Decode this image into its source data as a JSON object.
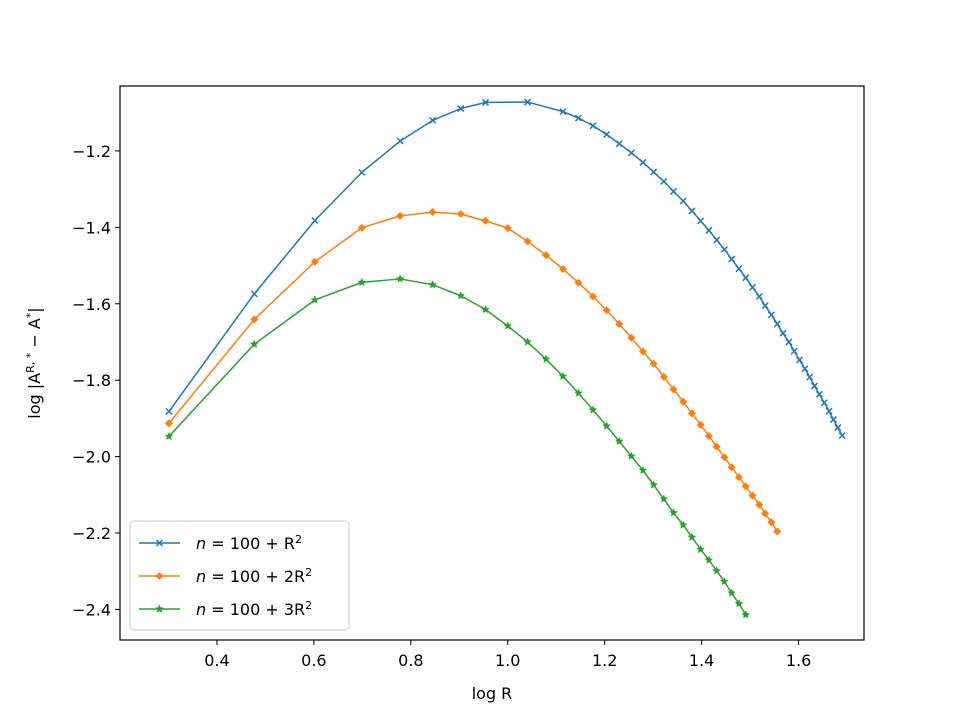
{
  "chart_data": {
    "type": "line",
    "title": "",
    "xlabel": "log R",
    "ylabel": "log |A^{R,*} − A^{*}|",
    "ylabel_parts": {
      "prefix": "log |A",
      "sup1": "R, *",
      "mid": " − A",
      "sup2": "*",
      "suffix": "|"
    },
    "xlim": [
      0.2,
      1.735
    ],
    "ylim": [
      -2.48,
      -1.03
    ],
    "xticks": [
      0.4,
      0.6,
      0.8,
      1.0,
      1.2,
      1.4,
      1.6
    ],
    "xtick_labels": [
      "0.4",
      "0.6",
      "0.8",
      "1.0",
      "1.2",
      "1.4",
      "1.6"
    ],
    "yticks": [
      -2.4,
      -2.2,
      -2.0,
      -1.8,
      -1.6,
      -1.4,
      -1.2
    ],
    "ytick_labels": [
      "−2.4",
      "−2.2",
      "−2.0",
      "−1.8",
      "−1.6",
      "−1.4",
      "−1.2"
    ],
    "grid": false,
    "legend_position": "lower-left",
    "series": [
      {
        "name": "n = 100 + R²",
        "legend": {
          "prefix": "n",
          "body": " = 100 + R",
          "sup": "2"
        },
        "color": "#1f77b4",
        "marker": "x",
        "x": [
          0.301,
          0.477,
          0.602,
          0.699,
          0.778,
          0.845,
          0.903,
          0.954,
          1.041,
          1.114,
          1.146,
          1.176,
          1.204,
          1.23,
          1.255,
          1.279,
          1.301,
          1.322,
          1.342,
          1.362,
          1.38,
          1.398,
          1.415,
          1.431,
          1.447,
          1.462,
          1.477,
          1.491,
          1.505,
          1.519,
          1.531,
          1.544,
          1.556,
          1.568,
          1.58,
          1.591,
          1.602,
          1.613,
          1.623,
          1.633,
          1.643,
          1.653,
          1.663,
          1.672,
          1.681,
          1.69
        ],
        "y": [
          -1.882,
          -1.574,
          -1.382,
          -1.256,
          -1.174,
          -1.12,
          -1.089,
          -1.073,
          -1.072,
          -1.097,
          -1.114,
          -1.134,
          -1.157,
          -1.181,
          -1.205,
          -1.23,
          -1.255,
          -1.28,
          -1.306,
          -1.331,
          -1.357,
          -1.383,
          -1.408,
          -1.433,
          -1.458,
          -1.483,
          -1.508,
          -1.532,
          -1.557,
          -1.581,
          -1.605,
          -1.629,
          -1.653,
          -1.677,
          -1.7,
          -1.724,
          -1.747,
          -1.77,
          -1.792,
          -1.815,
          -1.837,
          -1.859,
          -1.881,
          -1.903,
          -1.924,
          -1.945
        ]
      },
      {
        "name": "n = 100 + 2R²",
        "legend": {
          "prefix": "n",
          "body": " = 100 + 2R",
          "sup": "2"
        },
        "color": "#ff7f0e",
        "marker": "D",
        "x": [
          0.301,
          0.477,
          0.602,
          0.699,
          0.778,
          0.845,
          0.903,
          0.954,
          1.0,
          1.041,
          1.079,
          1.114,
          1.146,
          1.176,
          1.204,
          1.23,
          1.255,
          1.279,
          1.301,
          1.322,
          1.342,
          1.362,
          1.38,
          1.398,
          1.415,
          1.431,
          1.447,
          1.462,
          1.477,
          1.491,
          1.505,
          1.519,
          1.531,
          1.544,
          1.556
        ],
        "y": [
          -1.913,
          -1.641,
          -1.49,
          -1.401,
          -1.37,
          -1.36,
          -1.365,
          -1.383,
          -1.402,
          -1.437,
          -1.473,
          -1.509,
          -1.545,
          -1.581,
          -1.617,
          -1.653,
          -1.689,
          -1.725,
          -1.757,
          -1.791,
          -1.824,
          -1.856,
          -1.887,
          -1.917,
          -1.946,
          -1.974,
          -2.002,
          -2.028,
          -2.054,
          -2.078,
          -2.102,
          -2.126,
          -2.149,
          -2.172,
          -2.196
        ]
      },
      {
        "name": "n = 100 + 3R²",
        "legend": {
          "prefix": "n",
          "body": " = 100 + 3R",
          "sup": "2"
        },
        "color": "#2ca02c",
        "marker": "*",
        "x": [
          0.301,
          0.477,
          0.602,
          0.699,
          0.778,
          0.845,
          0.903,
          0.954,
          1.0,
          1.041,
          1.079,
          1.114,
          1.146,
          1.176,
          1.204,
          1.23,
          1.255,
          1.279,
          1.301,
          1.322,
          1.342,
          1.362,
          1.38,
          1.398,
          1.415,
          1.431,
          1.447,
          1.462,
          1.477,
          1.491
        ],
        "y": [
          -1.947,
          -1.706,
          -1.59,
          -1.544,
          -1.535,
          -1.55,
          -1.579,
          -1.615,
          -1.658,
          -1.7,
          -1.745,
          -1.79,
          -1.834,
          -1.878,
          -1.92,
          -1.96,
          -1.999,
          -2.036,
          -2.074,
          -2.111,
          -2.147,
          -2.179,
          -2.211,
          -2.243,
          -2.271,
          -2.299,
          -2.327,
          -2.357,
          -2.385,
          -2.414
        ]
      }
    ]
  }
}
